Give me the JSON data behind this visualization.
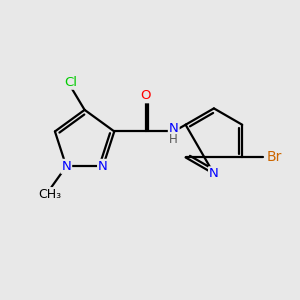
{
  "background_color": "#e8e8e8",
  "bond_color": "#000000",
  "bond_width": 1.6,
  "atom_colors": {
    "N": "#0000ff",
    "O": "#ff0000",
    "Cl": "#00cc00",
    "Br": "#cc6600",
    "C": "#000000",
    "H": "#555555"
  },
  "font_size": 9.5,
  "fig_width": 3.0,
  "fig_height": 3.0,
  "dpi": 100
}
